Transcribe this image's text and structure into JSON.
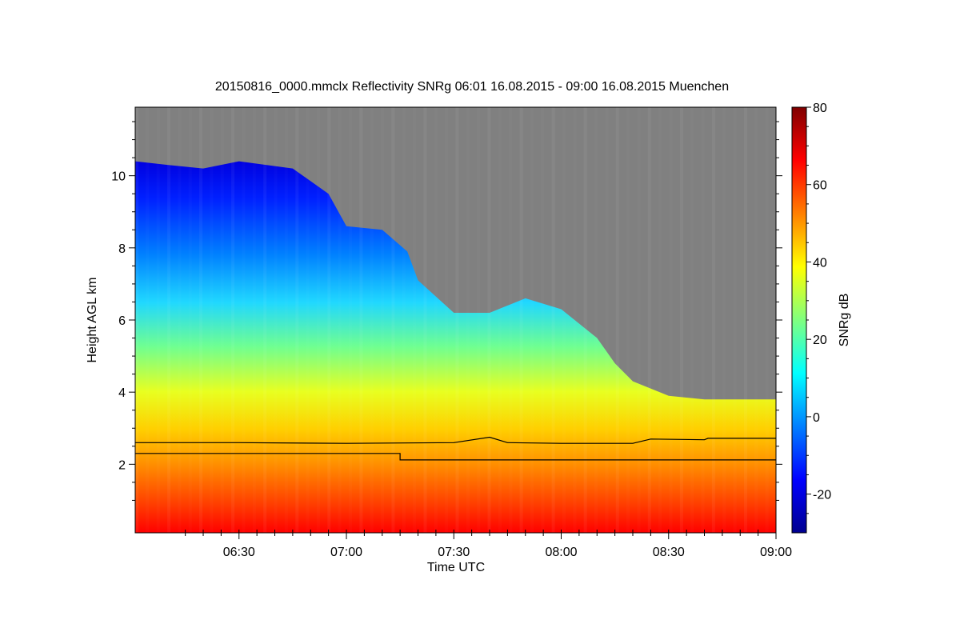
{
  "chart_data": {
    "type": "heatmap",
    "title": "20150816_0000.mmclx Reflectivity SNRg   06:01 16.08.2015 - 09:00 16.08.2015 Muenchen",
    "xlabel": "Time UTC",
    "ylabel": "Height AGL km",
    "xlim": [
      "06:01",
      "09:00"
    ],
    "ylim": [
      0.1,
      11.9
    ],
    "x_tick_labels": [
      "06:30",
      "07:00",
      "07:30",
      "08:00",
      "08:30",
      "09:00"
    ],
    "y_tick_values": [
      2,
      4,
      6,
      8,
      10
    ],
    "y_tick_labels": [
      "2",
      "4",
      "6",
      "8",
      "10"
    ],
    "no_signal_color": "#808080",
    "colorbar": {
      "label": "SNRg dB",
      "range": [
        -30,
        80
      ],
      "tick_values": [
        -20,
        0,
        20,
        40,
        60,
        80
      ],
      "tick_labels": [
        "-20",
        "0",
        "20",
        "40",
        "60",
        "80"
      ],
      "colormap": "jet"
    },
    "echo_top_km": [
      {
        "time": "06:01",
        "height": 10.4
      },
      {
        "time": "06:10",
        "height": 10.3
      },
      {
        "time": "06:20",
        "height": 10.2
      },
      {
        "time": "06:30",
        "height": 10.4
      },
      {
        "time": "06:45",
        "height": 10.2
      },
      {
        "time": "06:55",
        "height": 9.5
      },
      {
        "time": "07:00",
        "height": 8.6
      },
      {
        "time": "07:10",
        "height": 8.5
      },
      {
        "time": "07:17",
        "height": 7.9
      },
      {
        "time": "07:20",
        "height": 7.1
      },
      {
        "time": "07:30",
        "height": 6.2
      },
      {
        "time": "07:40",
        "height": 6.2
      },
      {
        "time": "07:50",
        "height": 6.6
      },
      {
        "time": "08:00",
        "height": 6.3
      },
      {
        "time": "08:10",
        "height": 5.5
      },
      {
        "time": "08:15",
        "height": 4.8
      },
      {
        "time": "08:20",
        "height": 4.3
      },
      {
        "time": "08:30",
        "height": 3.9
      },
      {
        "time": "08:40",
        "height": 3.8
      },
      {
        "time": "08:50",
        "height": 3.8
      },
      {
        "time": "09:00",
        "height": 3.8
      }
    ],
    "series": [
      {
        "values": [
          {
            "time": "06:01",
            "height": 2.6
          },
          {
            "time": "06:30",
            "height": 2.6
          },
          {
            "time": "07:00",
            "height": 2.58
          },
          {
            "time": "07:30",
            "height": 2.6
          },
          {
            "time": "07:40",
            "height": 2.75
          },
          {
            "time": "07:45",
            "height": 2.6
          },
          {
            "time": "08:00",
            "height": 2.58
          },
          {
            "time": "08:20",
            "height": 2.58
          },
          {
            "time": "08:25",
            "height": 2.7
          },
          {
            "time": "08:40",
            "height": 2.68
          },
          {
            "time": "08:41",
            "height": 2.72
          },
          {
            "time": "09:00",
            "height": 2.72
          }
        ]
      },
      {
        "values": [
          {
            "time": "06:01",
            "height": 2.3
          },
          {
            "time": "07:15",
            "height": 2.3
          },
          {
            "time": "07:15",
            "height": 2.12
          },
          {
            "time": "09:00",
            "height": 2.12
          }
        ]
      }
    ]
  }
}
